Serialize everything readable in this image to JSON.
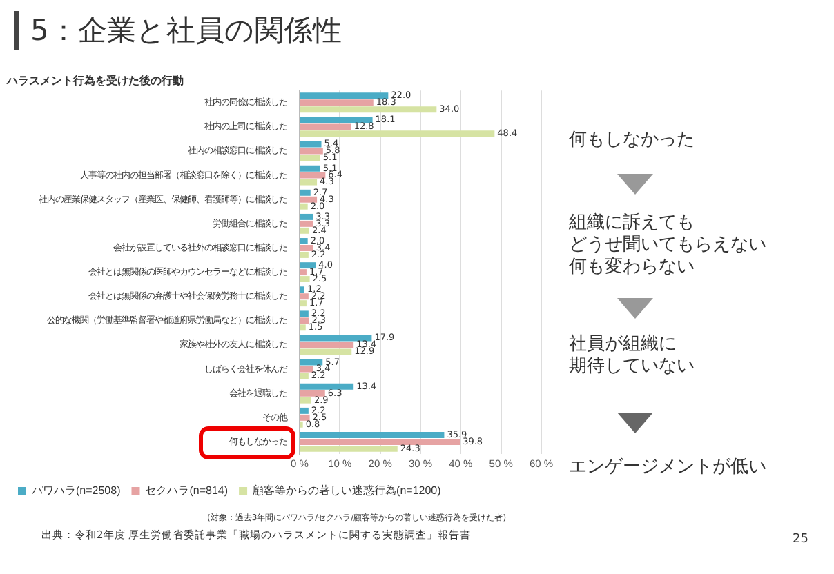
{
  "chart_data": {
    "type": "bar",
    "orientation": "horizontal",
    "title": "5：企業と社員の関係性",
    "subtitle": "ハラスメント行為を受けた後の行動",
    "categories": [
      "社内の同僚に相談した",
      "社内の上司に相談した",
      "社内の相談窓口に相談した",
      "人事等の社内の担当部署（相談窓口を除く）に相談した",
      "社内の産業保健スタッフ（産業医、保健師、看護師等）に相談した",
      "労働組合に相談した",
      "会社が設置している社外の相談窓口に相談した",
      "会社とは無関係の医師やカウンセラーなどに相談した",
      "会社とは無関係の弁護士や社会保険労務士に相談した",
      "公的な機関（労働基準監督署や都道府県労働局など）に相談した",
      "家族や社外の友人に相談した",
      "しばらく会社を休んだ",
      "会社を退職した",
      "その他",
      "何もしなかった"
    ],
    "series": [
      {
        "name": "パワハラ(n=2508)",
        "color": "#4bacc6",
        "values": [
          22.0,
          18.1,
          5.4,
          5.1,
          2.7,
          3.3,
          2.0,
          4.0,
          1.2,
          2.2,
          17.9,
          5.7,
          13.4,
          2.2,
          35.9
        ],
        "value_labels": [
          "22.0",
          "18.1",
          "5.4",
          "5.1",
          "2.7",
          "3.3",
          "2.0",
          "4.0",
          "1.2",
          "2.2",
          "17.9",
          "5.7",
          "13.4",
          "2.2",
          "35.9"
        ]
      },
      {
        "name": "セクハラ(n=814)",
        "color": "#e6a3a3",
        "values": [
          18.3,
          12.8,
          5.8,
          6.4,
          4.3,
          3.3,
          3.4,
          1.7,
          2.2,
          2.3,
          13.4,
          3.4,
          6.3,
          2.5,
          39.8
        ],
        "value_labels": [
          "18.3",
          "12.8",
          "5.8",
          "6.4",
          "4.3",
          "3.3",
          "3.4",
          "1.7",
          "2.2",
          "2.3",
          "13.4",
          "3.4",
          "6.3",
          "2.5",
          "39.8"
        ]
      },
      {
        "name": "顧客等からの著しい迷惑行為(n=1200)",
        "color": "#d6e3a3",
        "values": [
          34.0,
          48.4,
          5.1,
          4.3,
          2.0,
          2.4,
          2.2,
          2.5,
          1.7,
          1.5,
          12.9,
          2.2,
          2.9,
          0.8,
          24.3
        ],
        "value_labels": [
          "34.0",
          "48.4",
          "5.1",
          "4.3",
          "2.0",
          "2.4",
          "2.2",
          "2.5",
          "1.7",
          "1.5",
          "12.9",
          "2.2",
          "2.9",
          "0.8",
          "24.3"
        ]
      }
    ],
    "xlim": [
      0,
      60
    ],
    "xticks": [
      {
        "value": 0,
        "label": "0 %"
      },
      {
        "value": 10,
        "label": "10 %"
      },
      {
        "value": 20,
        "label": "20 %"
      },
      {
        "value": 30,
        "label": "30 %"
      },
      {
        "value": 40,
        "label": "40 %"
      },
      {
        "value": 50,
        "label": "50 %"
      },
      {
        "value": 60,
        "label": "60 %"
      }
    ],
    "grid": "x",
    "legend": "bottom",
    "annotations": [
      "(対象：過去3年間にパワハラ/セクハラ/顧客等からの著しい迷惑行為を受けた者)",
      "出典：令和2年度 厚生労働省委託事業「職場のハラスメントに関する実態調査」報告書",
      "何もしなかった",
      "組織に訴えても",
      "どうせ聞いてもらえない",
      "何も変わらない",
      "社員が組織に",
      "期待していない",
      "エンゲージメントが低い",
      "25"
    ]
  }
}
